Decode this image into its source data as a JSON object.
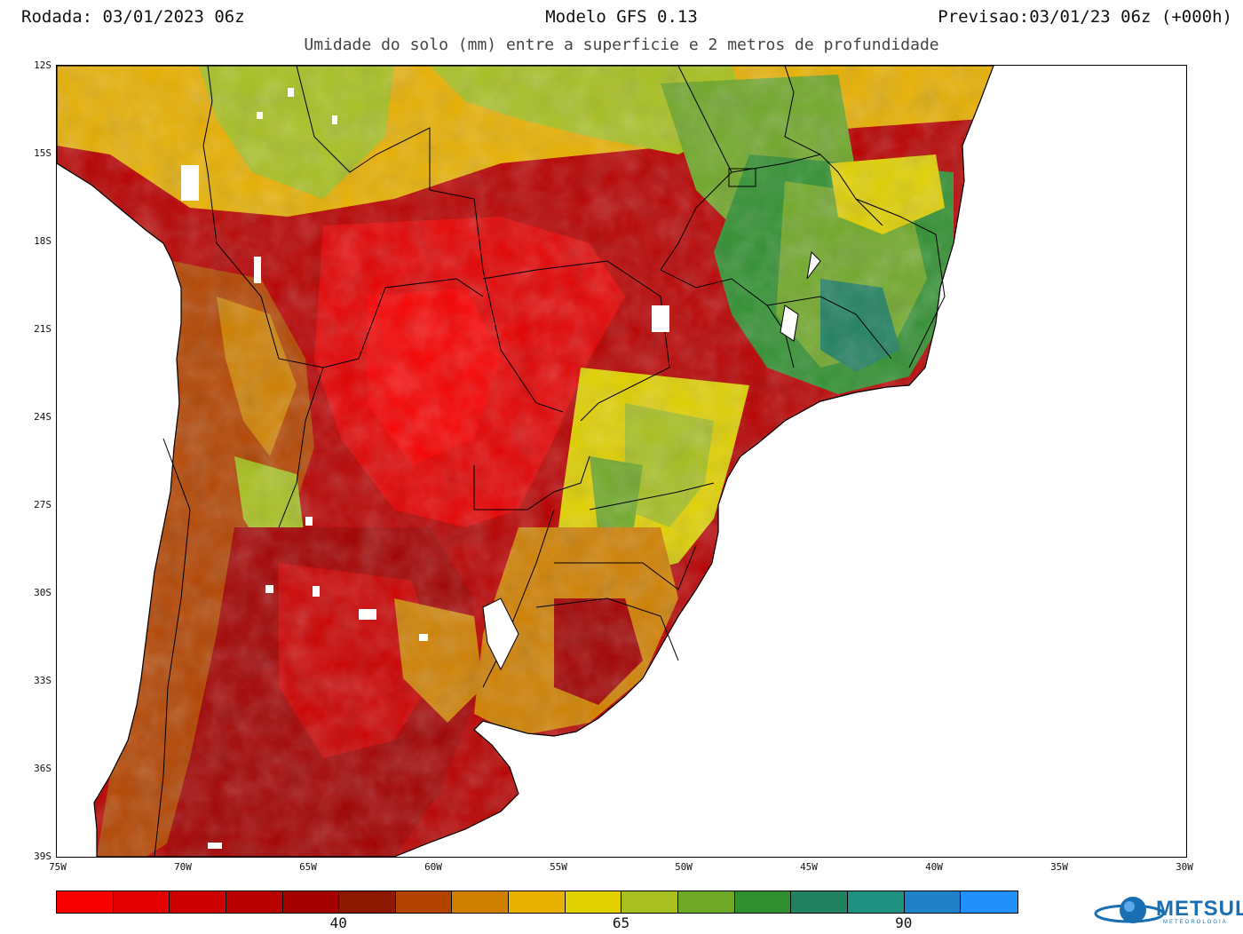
{
  "header": {
    "left": "Rodada: 03/01/2023 06z",
    "center": "Modelo GFS 0.13",
    "right": "Previsao:03/01/23 06z (+000h)"
  },
  "subtitle": "Umidade do solo (mm) entre a superficie e 2 metros de profundidade",
  "map": {
    "lon_range": [
      -75,
      -30
    ],
    "lat_range": [
      -39,
      -12
    ],
    "y_ticks": [
      "12S",
      "15S",
      "18S",
      "21S",
      "24S",
      "27S",
      "30S",
      "33S",
      "36S",
      "39S"
    ],
    "x_ticks": [
      "75W",
      "70W",
      "65W",
      "60W",
      "55W",
      "50W",
      "45W",
      "40W",
      "35W",
      "30W"
    ],
    "land_color_dry": "#b30000",
    "land_color_wet": "#2e8b57",
    "ocean_color": "#ffffff"
  },
  "colorbar": {
    "colors": [
      "#f80000",
      "#e40000",
      "#cc0000",
      "#b80000",
      "#a30000",
      "#8b1a00",
      "#b34400",
      "#d08000",
      "#e8b000",
      "#e0d000",
      "#a8c020",
      "#70a828",
      "#309030",
      "#208060",
      "#209080",
      "#2080c8",
      "#2090f8"
    ],
    "labels": [
      {
        "text": "40",
        "after_index": 4
      },
      {
        "text": "65",
        "after_index": 9
      },
      {
        "text": "90",
        "after_index": 14
      }
    ]
  },
  "logo": {
    "name": "METSUL",
    "sub": "METEOROLOGIA"
  }
}
